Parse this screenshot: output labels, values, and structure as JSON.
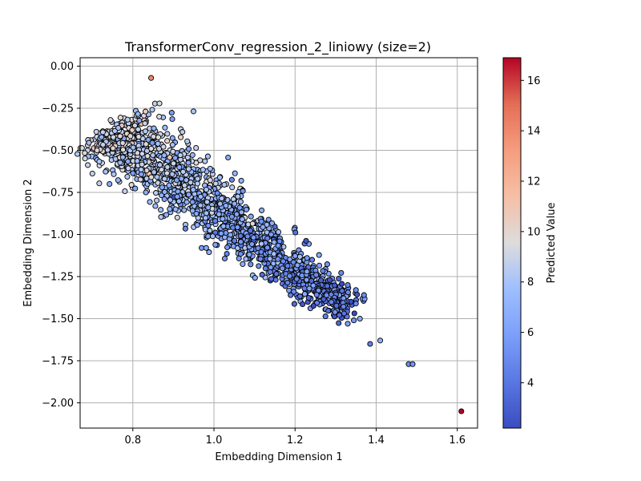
{
  "chart_data": {
    "type": "scatter",
    "title": "TransformerConv_regression_2_liniowy (size=2)",
    "xlabel": "Embedding Dimension 1",
    "ylabel": "Embedding Dimension 2",
    "xlim": [
      0.67,
      1.65
    ],
    "ylim": [
      -2.15,
      0.05
    ],
    "xticks": [
      "0.8",
      "1.0",
      "1.2",
      "1.4",
      "1.6"
    ],
    "yticks": [
      "0.00",
      "−0.25",
      "−0.50",
      "−0.75",
      "−1.00",
      "−1.25",
      "−1.50",
      "−1.75",
      "−2.00"
    ],
    "grid": true,
    "colormap": "coolwarm",
    "colorbar": {
      "label": "Predicted Value",
      "range": [
        2.2,
        16.9
      ],
      "ticks": [
        "4",
        "6",
        "8",
        "10",
        "12",
        "14",
        "16"
      ]
    },
    "main_cluster": {
      "description_points": 1,
      "start": [
        0.75,
        -0.38
      ],
      "end": [
        1.33,
        -1.45
      ],
      "point_count_estimate": 1500
    },
    "points": [
      {
        "x": 0.845,
        "y": -0.07,
        "value": 14.0
      },
      {
        "x": 1.61,
        "y": -2.05,
        "value": 16.9
      },
      {
        "x": 1.48,
        "y": -1.77,
        "value": 5.0
      },
      {
        "x": 1.49,
        "y": -1.77,
        "value": 5.5
      },
      {
        "x": 1.41,
        "y": -1.63,
        "value": 7.0
      },
      {
        "x": 1.385,
        "y": -1.65,
        "value": 4.5
      },
      {
        "x": 1.37,
        "y": -1.36,
        "value": 5.0
      },
      {
        "x": 1.36,
        "y": -1.5,
        "value": 6.5
      },
      {
        "x": 1.33,
        "y": -1.53,
        "value": 6.0
      },
      {
        "x": 1.345,
        "y": -1.51,
        "value": 5.5
      },
      {
        "x": 1.35,
        "y": -1.41,
        "value": 5.0
      },
      {
        "x": 1.35,
        "y": -1.33,
        "value": 5.2
      },
      {
        "x": 1.33,
        "y": -1.3,
        "value": 4.8
      },
      {
        "x": 0.71,
        "y": -0.39,
        "value": 9.0
      },
      {
        "x": 0.745,
        "y": -0.32,
        "value": 9.5
      },
      {
        "x": 0.865,
        "y": -0.3,
        "value": 9.8
      }
    ],
    "colors": {
      "low": "#3b4cc0",
      "mid": "#dddddd",
      "high": "#b40426",
      "grid": "#b0b0b0",
      "edge": "#000000"
    }
  }
}
